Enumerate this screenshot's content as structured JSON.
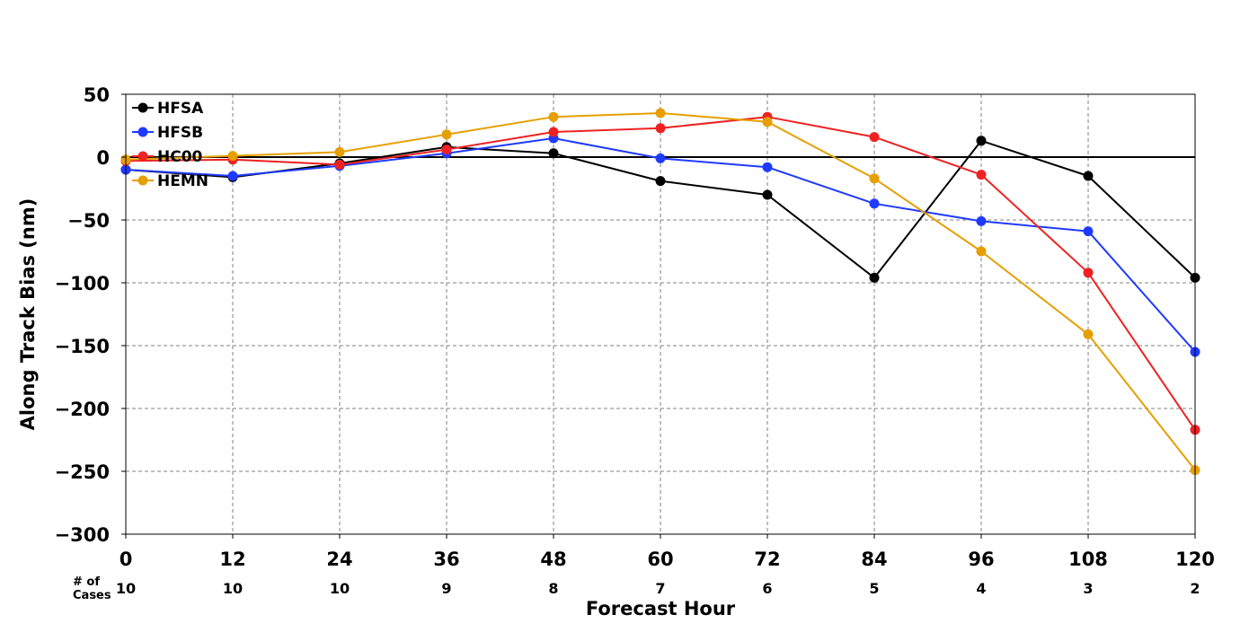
{
  "chart_data": {
    "type": "line",
    "xlabel": "Forecast Hour",
    "ylabel": "Along Track Bias (nm)",
    "x": [
      0,
      12,
      24,
      36,
      48,
      60,
      72,
      84,
      96,
      108,
      120
    ],
    "x_tick_labels": [
      "0",
      "12",
      "24",
      "36",
      "48",
      "60",
      "72",
      "84",
      "96",
      "108",
      "120"
    ],
    "xlim": [
      0,
      120
    ],
    "ylim": [
      -300,
      50
    ],
    "y_ticks": [
      50,
      0,
      -50,
      -100,
      -150,
      -200,
      -250,
      -300
    ],
    "y_tick_labels": [
      "50",
      "0",
      "−50",
      "−100",
      "−150",
      "−200",
      "−250",
      "−300"
    ],
    "grid": true,
    "zero_line": true,
    "legend_position": "top-left",
    "cases_title": [
      "# of",
      "Cases"
    ],
    "cases": [
      "10",
      "10",
      "10",
      "9",
      "8",
      "7",
      "6",
      "5",
      "4",
      "3",
      "2"
    ],
    "series": [
      {
        "name": "HFSA",
        "color": "#000000",
        "values": [
          -10,
          -16,
          -5,
          8,
          3,
          -19,
          -30,
          -96,
          13,
          -15,
          -96
        ]
      },
      {
        "name": "HFSB",
        "color": "#1f3aff",
        "values": [
          -10,
          -15,
          -7,
          3,
          15,
          -1,
          -8,
          -37,
          -51,
          -59,
          -155
        ]
      },
      {
        "name": "HC00",
        "color": "#ee2222",
        "values": [
          -3,
          -2,
          -6,
          6,
          20,
          23,
          32,
          16,
          -14,
          -92,
          -217
        ]
      },
      {
        "name": "HEMN",
        "color": "#e69f00",
        "values": [
          -2,
          1,
          4,
          18,
          32,
          35,
          28,
          -17,
          -75,
          -141,
          -249
        ]
      }
    ]
  }
}
